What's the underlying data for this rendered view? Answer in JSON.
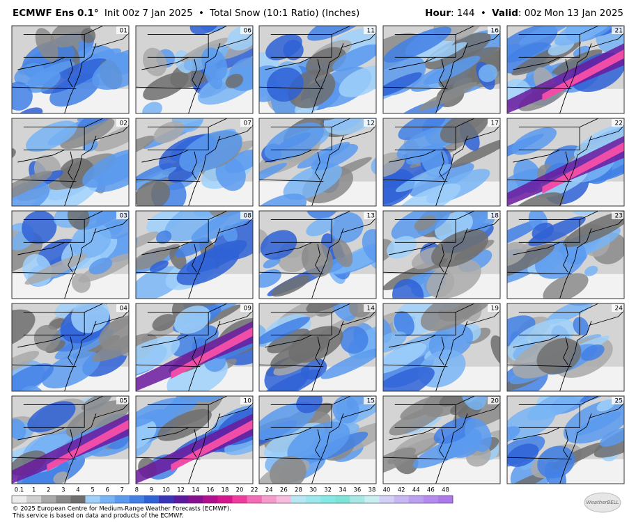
{
  "header": {
    "model": "ECMWF Ens 0.1°",
    "init": "Init 00z 7 Jan 2025",
    "separator": "•",
    "product": "Total Snow (10:1 Ratio) (Inches)",
    "hour_label": "Hour",
    "hour_value": ": 144",
    "valid_label": "Valid",
    "valid_value": ": 00z Mon 13 Jan 2025"
  },
  "panels": [
    "01",
    "02",
    "03",
    "04",
    "05",
    "06",
    "07",
    "08",
    "09",
    "10",
    "11",
    "12",
    "13",
    "14",
    "15",
    "16",
    "17",
    "18",
    "19",
    "20",
    "21",
    "22",
    "23",
    "24",
    "25"
  ],
  "legend": {
    "labels": [
      "0.1",
      "1",
      "2",
      "3",
      "4",
      "5",
      "6",
      "7",
      "8",
      "9",
      "10",
      "12",
      "14",
      "16",
      "18",
      "20",
      "22",
      "24",
      "26",
      "28",
      "30",
      "32",
      "34",
      "36",
      "38",
      "40",
      "42",
      "44",
      "46",
      "48"
    ],
    "colors": [
      "#ebebeb",
      "#cfcfcf",
      "#a9a9a9",
      "#8a8a8a",
      "#6e6e6e",
      "#9fd0fa",
      "#78b4f5",
      "#5a9aef",
      "#4280e6",
      "#2f62d6",
      "#3a34b8",
      "#5a1aa0",
      "#86108f",
      "#b0108d",
      "#d5168f",
      "#ee3c9e",
      "#f26db6",
      "#f59bcc",
      "#f7bcdc",
      "#b8e6f2",
      "#9be8ef",
      "#86e8e6",
      "#7fe3d8",
      "#a7e8e4",
      "#c9eef0",
      "#d3d0f5",
      "#c7b8f3",
      "#bca0f0",
      "#b58aee",
      "#ad78ea"
    ]
  },
  "footer": {
    "copyright": "© 2025 European Centre for Medium-Range Weather Forecasts (ECMWF).",
    "note": "This service is based on data and products of the ECMWF.",
    "logo": "WeatherBELL"
  }
}
